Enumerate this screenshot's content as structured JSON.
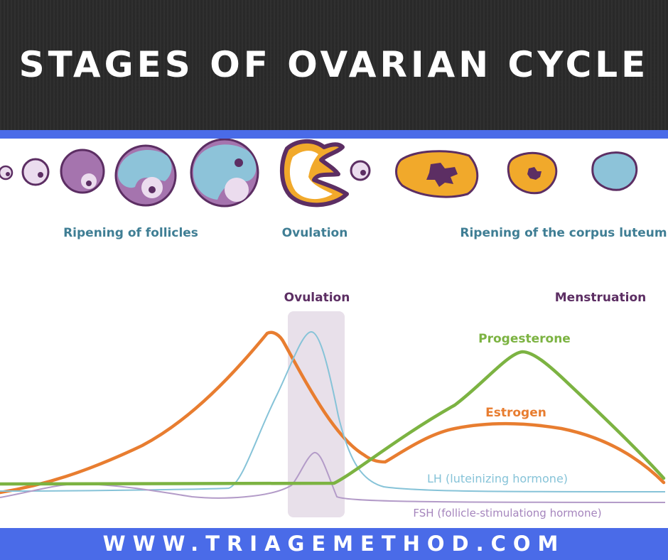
{
  "header": {
    "title": "STAGES OF OVARIAN CYCLE"
  },
  "phase_labels": {
    "follicles": "Ripening of follicles",
    "ovulation": "Ovulation",
    "corpus_luteum": "Ripening of the corpus luteum"
  },
  "chart_labels": {
    "ovulation": "Ovulation",
    "menstruation": "Menstruation",
    "progesterone": "Progesterone",
    "estrogen": "Estrogen",
    "lh": "LH (luteinizing hormone)",
    "fsh": "FSH (follicle-stimulationg hormone)"
  },
  "footer": {
    "url": "WWW.TRIAGEMETHOD.COM"
  },
  "colors": {
    "header_bg": "#2b2b2b",
    "accent_blue": "#4a6be8",
    "follicle_purple": "#a574ae",
    "follicle_dark": "#5c2e63",
    "follicle_light_pink": "#ebdcee",
    "fluid_blue": "#8dc3d9",
    "corpus_orange": "#f1a92b",
    "estrogen": "#e87d30",
    "progesterone": "#7cb342",
    "lh": "#86c3d8",
    "fsh": "#b39bc8",
    "phase_label": "#3f7e94",
    "chart_label_purple": "#5c2e63",
    "ovulation_band": "#e8e0ea"
  }
}
